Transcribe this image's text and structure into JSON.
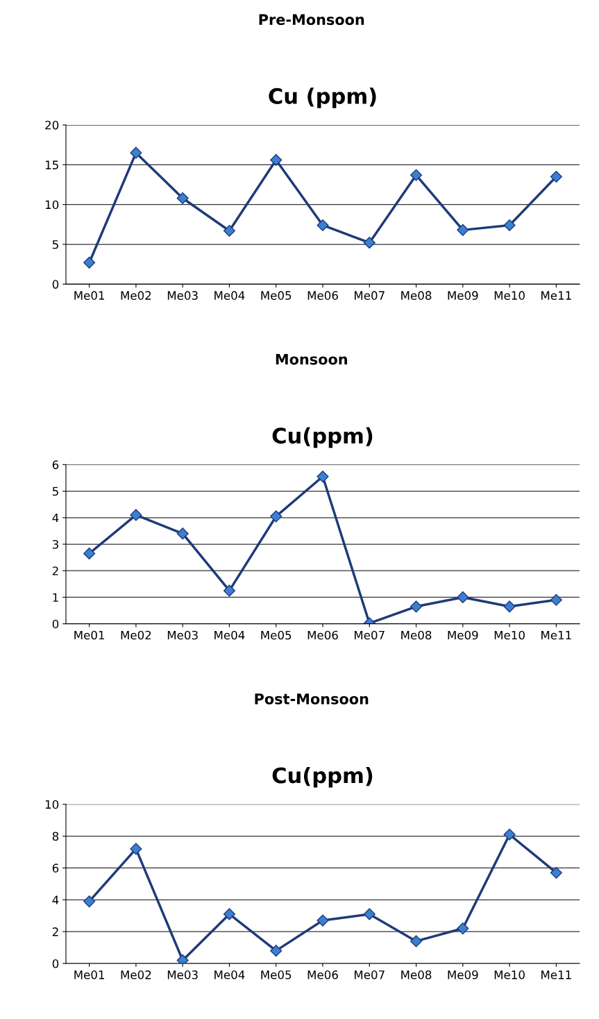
{
  "chart_data": [
    {
      "type": "line",
      "title": "Pre-Monsoon",
      "subtitle": "Cu (ppm)",
      "categories": [
        "Me01",
        "Me02",
        "Me03",
        "Me04",
        "Me05",
        "Me06",
        "Me07",
        "Me08",
        "Me09",
        "Me10",
        "Me11"
      ],
      "series": [
        {
          "color": "#1f3a7a",
          "values": [
            2.7,
            16.5,
            10.8,
            6.7,
            15.6,
            7.4,
            5.2,
            13.7,
            6.8,
            7.4,
            13.5
          ]
        }
      ],
      "ylim": [
        0,
        20
      ],
      "yticks": [
        0,
        5,
        10,
        15,
        20
      ],
      "grid": "y",
      "marker": "diamond",
      "line_style": "solid"
    },
    {
      "type": "line",
      "title": "Monsoon",
      "subtitle": "Cu(ppm)",
      "categories": [
        "Me01",
        "Me02",
        "Me03",
        "Me04",
        "Me05",
        "Me06",
        "Me07",
        "Me08",
        "Me09",
        "Me10",
        "Me11"
      ],
      "series": [
        {
          "color": "#1f3a7a",
          "values": [
            2.65,
            4.1,
            3.4,
            1.25,
            4.05,
            5.55,
            0.02,
            0.65,
            1.0,
            0.65,
            0.9
          ]
        }
      ],
      "ylim": [
        0,
        6
      ],
      "yticks": [
        0,
        1,
        2,
        3,
        4,
        5,
        6
      ],
      "grid": "y",
      "marker": "diamond",
      "line_style": "solid"
    },
    {
      "type": "line",
      "title": "Post-Monsoon",
      "subtitle": "Cu(ppm)",
      "categories": [
        "Me01",
        "Me02",
        "Me03",
        "Me04",
        "Me05",
        "Me06",
        "Me07",
        "Me08",
        "Me09",
        "Me10",
        "Me11"
      ],
      "series": [
        {
          "color": "#1f3a7a",
          "values": [
            3.9,
            7.2,
            0.2,
            3.1,
            0.8,
            2.7,
            3.1,
            1.4,
            2.2,
            8.1,
            5.7
          ]
        }
      ],
      "ylim": [
        0,
        10
      ],
      "yticks": [
        0,
        2,
        4,
        6,
        8,
        10
      ],
      "grid": "y",
      "marker": "diamond",
      "line_style": "solid"
    }
  ]
}
